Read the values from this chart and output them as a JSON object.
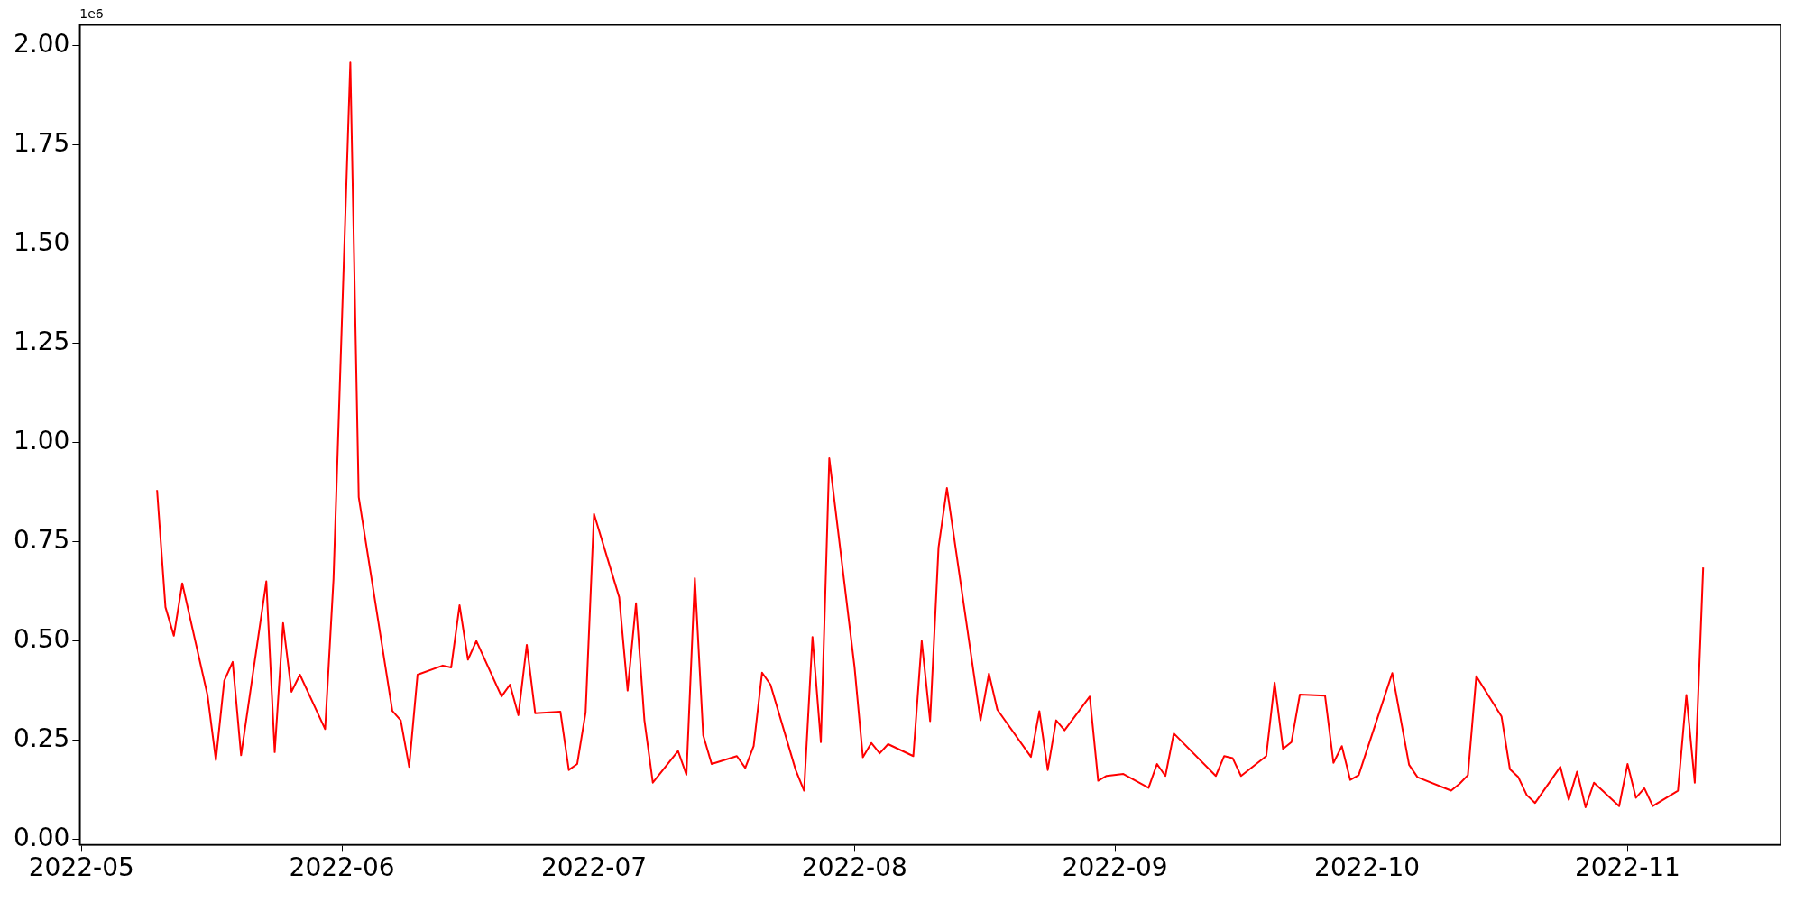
{
  "chart_data": {
    "type": "line",
    "annotations": [
      "1e6"
    ],
    "x": [
      "2022-05-10",
      "2022-05-11",
      "2022-05-12",
      "2022-05-13",
      "2022-05-16",
      "2022-05-17",
      "2022-05-18",
      "2022-05-19",
      "2022-05-20",
      "2022-05-23",
      "2022-05-24",
      "2022-05-25",
      "2022-05-26",
      "2022-05-27",
      "2022-05-30",
      "2022-05-31",
      "2022-06-02",
      "2022-06-03",
      "2022-06-07",
      "2022-06-08",
      "2022-06-09",
      "2022-06-10",
      "2022-06-13",
      "2022-06-14",
      "2022-06-15",
      "2022-06-16",
      "2022-06-17",
      "2022-06-20",
      "2022-06-21",
      "2022-06-22",
      "2022-06-23",
      "2022-06-24",
      "2022-06-27",
      "2022-06-28",
      "2022-06-29",
      "2022-06-30",
      "2022-07-01",
      "2022-07-04",
      "2022-07-05",
      "2022-07-06",
      "2022-07-07",
      "2022-07-08",
      "2022-07-11",
      "2022-07-12",
      "2022-07-13",
      "2022-07-14",
      "2022-07-15",
      "2022-07-18",
      "2022-07-19",
      "2022-07-20",
      "2022-07-21",
      "2022-07-22",
      "2022-07-25",
      "2022-07-26",
      "2022-07-27",
      "2022-07-28",
      "2022-07-29",
      "2022-08-01",
      "2022-08-02",
      "2022-08-03",
      "2022-08-04",
      "2022-08-05",
      "2022-08-08",
      "2022-08-09",
      "2022-08-10",
      "2022-08-11",
      "2022-08-12",
      "2022-08-16",
      "2022-08-17",
      "2022-08-18",
      "2022-08-22",
      "2022-08-23",
      "2022-08-24",
      "2022-08-25",
      "2022-08-26",
      "2022-08-29",
      "2022-08-30",
      "2022-08-31",
      "2022-09-02",
      "2022-09-05",
      "2022-09-06",
      "2022-09-07",
      "2022-09-08",
      "2022-09-13",
      "2022-09-14",
      "2022-09-15",
      "2022-09-16",
      "2022-09-19",
      "2022-09-20",
      "2022-09-21",
      "2022-09-22",
      "2022-09-23",
      "2022-09-26",
      "2022-09-27",
      "2022-09-28",
      "2022-09-29",
      "2022-09-30",
      "2022-10-04",
      "2022-10-06",
      "2022-10-07",
      "2022-10-11",
      "2022-10-12",
      "2022-10-13",
      "2022-10-14",
      "2022-10-17",
      "2022-10-18",
      "2022-10-19",
      "2022-10-20",
      "2022-10-21",
      "2022-10-24",
      "2022-10-25",
      "2022-10-26",
      "2022-10-27",
      "2022-10-28",
      "2022-10-31",
      "2022-11-01",
      "2022-11-02",
      "2022-11-03",
      "2022-11-04",
      "2022-11-07",
      "2022-11-08",
      "2022-11-09",
      "2022-11-10"
    ],
    "series": [
      {
        "color": "#ff0000",
        "values": [
          0.88,
          0.585,
          0.513,
          0.645,
          0.364,
          0.2,
          0.4,
          0.447,
          0.212,
          0.65,
          0.22,
          0.545,
          0.372,
          0.415,
          0.278,
          0.656,
          1.957,
          0.862,
          0.324,
          0.3,
          0.183,
          0.415,
          0.438,
          0.433,
          0.59,
          0.453,
          0.5,
          0.36,
          0.39,
          0.313,
          0.49,
          0.318,
          0.322,
          0.175,
          0.19,
          0.32,
          0.82,
          0.61,
          0.375,
          0.595,
          0.3,
          0.143,
          0.223,
          0.163,
          0.658,
          0.262,
          0.19,
          0.21,
          0.18,
          0.235,
          0.42,
          0.39,
          0.175,
          0.123,
          0.51,
          0.245,
          0.96,
          0.435,
          0.207,
          0.243,
          0.217,
          0.24,
          0.21,
          0.5,
          0.298,
          0.735,
          0.885,
          0.3,
          0.418,
          0.327,
          0.208,
          0.323,
          0.175,
          0.3,
          0.275,
          0.36,
          0.148,
          0.16,
          0.165,
          0.13,
          0.19,
          0.16,
          0.267,
          0.16,
          0.21,
          0.205,
          0.16,
          0.21,
          0.395,
          0.228,
          0.245,
          0.365,
          0.362,
          0.193,
          0.235,
          0.15,
          0.162,
          0.419,
          0.188,
          0.157,
          0.123,
          0.14,
          0.162,
          0.411,
          0.31,
          0.177,
          0.157,
          0.112,
          0.092,
          0.183,
          0.1,
          0.171,
          0.081,
          0.143,
          0.084,
          0.19,
          0.105,
          0.129,
          0.084,
          0.123,
          0.364,
          0.143,
          0.685
        ]
      }
    ],
    "xlim": [
      "2022-04-30T19:00",
      "2022-11-19T05:00"
    ],
    "xticks": [
      {
        "value": "2022-05-01",
        "label": "2022-05"
      },
      {
        "value": "2022-06-01",
        "label": "2022-06"
      },
      {
        "value": "2022-07-01",
        "label": "2022-07"
      },
      {
        "value": "2022-08-01",
        "label": "2022-08"
      },
      {
        "value": "2022-09-01",
        "label": "2022-09"
      },
      {
        "value": "2022-10-01",
        "label": "2022-10"
      },
      {
        "value": "2022-11-01",
        "label": "2022-11"
      }
    ],
    "ylim": [
      -0.013,
      2.051
    ],
    "yticks": [
      {
        "value": 0,
        "label": "0.00"
      },
      {
        "value": 0.25,
        "label": "0.25"
      },
      {
        "value": 0.5,
        "label": "0.50"
      },
      {
        "value": 0.75,
        "label": "0.75"
      },
      {
        "value": 1,
        "label": "1.00"
      },
      {
        "value": 1.25,
        "label": "1.25"
      },
      {
        "value": 1.5,
        "label": "1.50"
      },
      {
        "value": 1.75,
        "label": "1.75"
      },
      {
        "value": 2,
        "label": "2.00"
      }
    ],
    "grid": false,
    "legend": false,
    "marker": "none",
    "line_style": "solid"
  }
}
